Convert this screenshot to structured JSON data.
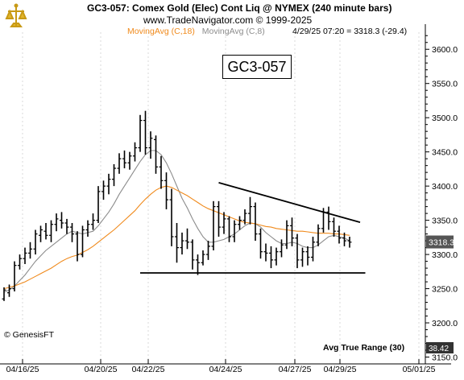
{
  "header": {
    "line1": "GC3-057:  Comex Gold (Elec) Cont Liq @ NYMEX  (240 minute bars)",
    "line2": "www.TradeNavigator.com © 1999-2025",
    "ma18_label": "MovingAvg (C,18)",
    "ma8_label": "MovingAvg (C,8)",
    "quote": "4/29/25 07:20 = 3318.3 (-29.4)"
  },
  "symbol_label": "GC3-057",
  "copyright": "© GenesisFT",
  "indicator_label": "Avg True Range (30)",
  "atr_value": "38.42",
  "last_price_tag": "3318.3",
  "colors": {
    "bars": "#000000",
    "ma18": "#f08a1c",
    "ma8": "#8c8c8c",
    "tag_bg": "#555555"
  },
  "chart_data": {
    "type": "ohlc",
    "title": "GC3-057:  Comex Gold (Elec) Cont Liq @ NYMEX  (240 minute bars)",
    "x_ticks": [
      "04/16/25",
      "04/20/25",
      "04/22/25",
      "04/24/25",
      "04/27/25",
      "04/29/25",
      "05/01/25"
    ],
    "y_ticks": [
      3150,
      3200,
      3250,
      3300,
      3350,
      3400,
      3450,
      3500,
      3550,
      3600
    ],
    "ylim": [
      3140,
      3625
    ],
    "bars": [
      [
        3235,
        3252,
        3232,
        3248
      ],
      [
        3244,
        3256,
        3238,
        3250
      ],
      [
        3250,
        3290,
        3246,
        3284
      ],
      [
        3284,
        3300,
        3278,
        3294
      ],
      [
        3294,
        3310,
        3286,
        3302
      ],
      [
        3302,
        3318,
        3294,
        3308
      ],
      [
        3308,
        3336,
        3300,
        3330
      ],
      [
        3328,
        3342,
        3318,
        3336
      ],
      [
        3334,
        3346,
        3322,
        3328
      ],
      [
        3328,
        3350,
        3318,
        3344
      ],
      [
        3344,
        3360,
        3334,
        3352
      ],
      [
        3350,
        3362,
        3338,
        3346
      ],
      [
        3346,
        3352,
        3330,
        3340
      ],
      [
        3340,
        3346,
        3318,
        3330
      ],
      [
        3330,
        3334,
        3290,
        3300
      ],
      [
        3300,
        3342,
        3296,
        3336
      ],
      [
        3336,
        3350,
        3326,
        3344
      ],
      [
        3344,
        3360,
        3336,
        3350
      ],
      [
        3350,
        3400,
        3346,
        3392
      ],
      [
        3392,
        3408,
        3380,
        3400
      ],
      [
        3400,
        3418,
        3388,
        3410
      ],
      [
        3410,
        3432,
        3400,
        3426
      ],
      [
        3426,
        3448,
        3418,
        3440
      ],
      [
        3440,
        3452,
        3426,
        3434
      ],
      [
        3434,
        3450,
        3424,
        3444
      ],
      [
        3444,
        3464,
        3436,
        3456
      ],
      [
        3456,
        3504,
        3450,
        3496
      ],
      [
        3496,
        3510,
        3446,
        3456
      ],
      [
        3456,
        3480,
        3440,
        3470
      ],
      [
        3468,
        3474,
        3418,
        3428
      ],
      [
        3428,
        3444,
        3396,
        3408
      ],
      [
        3408,
        3420,
        3366,
        3380
      ],
      [
        3380,
        3396,
        3312,
        3326
      ],
      [
        3326,
        3346,
        3288,
        3310
      ],
      [
        3310,
        3332,
        3300,
        3320
      ],
      [
        3320,
        3338,
        3308,
        3318
      ],
      [
        3318,
        3322,
        3278,
        3292
      ],
      [
        3292,
        3300,
        3270,
        3288
      ],
      [
        3288,
        3306,
        3284,
        3300
      ],
      [
        3300,
        3320,
        3292,
        3312
      ],
      [
        3312,
        3378,
        3306,
        3370
      ],
      [
        3370,
        3378,
        3326,
        3340
      ],
      [
        3340,
        3362,
        3330,
        3352
      ],
      [
        3352,
        3356,
        3318,
        3326
      ],
      [
        3326,
        3350,
        3318,
        3344
      ],
      [
        3344,
        3356,
        3336,
        3350
      ],
      [
        3350,
        3366,
        3344,
        3360
      ],
      [
        3360,
        3384,
        3344,
        3370
      ],
      [
        3370,
        3376,
        3320,
        3330
      ],
      [
        3330,
        3338,
        3294,
        3304
      ],
      [
        3304,
        3316,
        3290,
        3302
      ],
      [
        3302,
        3312,
        3280,
        3292
      ],
      [
        3292,
        3310,
        3284,
        3304
      ],
      [
        3304,
        3322,
        3296,
        3314
      ],
      [
        3314,
        3350,
        3308,
        3342
      ],
      [
        3342,
        3354,
        3312,
        3324
      ],
      [
        3324,
        3330,
        3280,
        3292
      ],
      [
        3292,
        3310,
        3282,
        3304
      ],
      [
        3304,
        3312,
        3284,
        3296
      ],
      [
        3296,
        3326,
        3290,
        3318
      ],
      [
        3318,
        3344,
        3312,
        3338
      ],
      [
        3338,
        3368,
        3332,
        3362
      ],
      [
        3362,
        3370,
        3336,
        3348
      ],
      [
        3348,
        3354,
        3326,
        3334
      ],
      [
        3334,
        3342,
        3316,
        3324
      ],
      [
        3324,
        3332,
        3312,
        3320
      ],
      [
        3320,
        3326,
        3310,
        3318
      ]
    ],
    "ma18": [
      3250,
      3252,
      3254,
      3257,
      3260,
      3264,
      3268,
      3272,
      3276,
      3280,
      3285,
      3290,
      3294,
      3297,
      3299,
      3303,
      3307,
      3312,
      3318,
      3324,
      3330,
      3336,
      3343,
      3350,
      3357,
      3364,
      3373,
      3381,
      3388,
      3394,
      3398,
      3400,
      3398,
      3394,
      3390,
      3386,
      3381,
      3376,
      3371,
      3367,
      3364,
      3361,
      3358,
      3355,
      3352,
      3349,
      3347,
      3346,
      3345,
      3343,
      3341,
      3340,
      3338,
      3337,
      3336,
      3335,
      3334,
      3334,
      3333,
      3332,
      3331,
      3331,
      3331,
      3330,
      3330,
      3329,
      3328
    ],
    "ma8": [
      3245,
      3248,
      3254,
      3262,
      3270,
      3280,
      3290,
      3298,
      3306,
      3312,
      3318,
      3324,
      3330,
      3334,
      3332,
      3330,
      3332,
      3334,
      3342,
      3352,
      3362,
      3374,
      3388,
      3400,
      3412,
      3424,
      3436,
      3446,
      3452,
      3452,
      3446,
      3434,
      3418,
      3400,
      3382,
      3368,
      3352,
      3338,
      3326,
      3318,
      3318,
      3320,
      3322,
      3326,
      3330,
      3336,
      3342,
      3346,
      3345,
      3340,
      3332,
      3326,
      3320,
      3316,
      3316,
      3318,
      3316,
      3312,
      3310,
      3310,
      3314,
      3320,
      3326,
      3328,
      3326,
      3324,
      3320
    ],
    "trendlines": [
      {
        "x0": 41,
        "y0": 3405,
        "x1": 68,
        "y1": 3347
      },
      {
        "x0": 26,
        "y0": 3273,
        "x1": 69,
        "y1": 3273
      }
    ]
  }
}
